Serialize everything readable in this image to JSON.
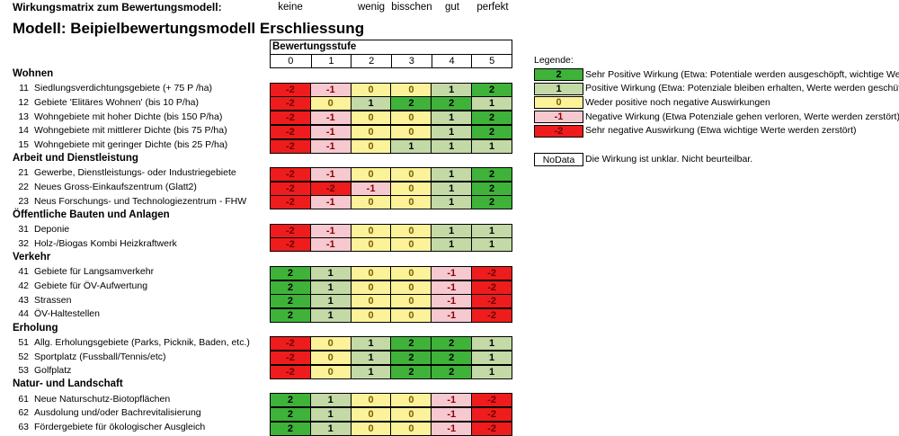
{
  "header_label": "Wirkungsmatrix zum Bewertungsmodell:",
  "level_labels": [
    "keine",
    "wenig",
    "bisschen",
    "gut",
    "perfekt"
  ],
  "title": "Modell: Beipielbewertungsmodell Erschliessung",
  "stufe": {
    "title": "Bewertungsstufe",
    "columns": [
      "0",
      "1",
      "2",
      "3",
      "4",
      "5"
    ]
  },
  "sections": [
    {
      "name": "Wohnen",
      "rows": [
        {
          "num": "11",
          "label": "Siedlungsverdichtungsgebiete (+ 75 P /ha)",
          "values": [
            "-2",
            "-1",
            "0",
            "0",
            "1",
            "2"
          ]
        },
        {
          "num": "12",
          "label": "Gebiete 'Elitäres Wohnen' (bis 10 P/ha)",
          "values": [
            "-2",
            "0",
            "1",
            "2",
            "2",
            "1"
          ]
        },
        {
          "num": "13",
          "label": "Wohngebiete mit hoher Dichte (bis 150 P/ha)",
          "values": [
            "-2",
            "-1",
            "0",
            "0",
            "1",
            "2"
          ]
        },
        {
          "num": "14",
          "label": "Wohngebiete mit mittlerer Dichte (bis 75 P/ha)",
          "values": [
            "-2",
            "-1",
            "0",
            "0",
            "1",
            "2"
          ]
        },
        {
          "num": "15",
          "label": "Wohngebiete mit geringer Dichte (bis 25 P/ha)",
          "values": [
            "-2",
            "-1",
            "0",
            "1",
            "1",
            "1"
          ]
        }
      ]
    },
    {
      "name": "Arbeit und Dienstleistung",
      "rows": [
        {
          "num": "21",
          "label": "Gewerbe, Dienstleistungs- oder Industriegebiete",
          "values": [
            "-2",
            "-1",
            "0",
            "0",
            "1",
            "2"
          ]
        },
        {
          "num": "22",
          "label": "Neues Gross-Einkaufszentrum (Glatt2)",
          "values": [
            "-2",
            "-2",
            "-1",
            "0",
            "1",
            "2"
          ]
        },
        {
          "num": "23",
          "label": "Neus Forschungs- und Technologiezentrum - FHW",
          "values": [
            "-2",
            "-1",
            "0",
            "0",
            "1",
            "2"
          ]
        }
      ]
    },
    {
      "name": "Öffentliche Bauten und Anlagen",
      "rows": [
        {
          "num": "31",
          "label": "Deponie",
          "values": [
            "-2",
            "-1",
            "0",
            "0",
            "1",
            "1"
          ]
        },
        {
          "num": "32",
          "label": "Holz-/Biogas Kombi Heizkraftwerk",
          "values": [
            "-2",
            "-1",
            "0",
            "0",
            "1",
            "1"
          ]
        }
      ]
    },
    {
      "name": "Verkehr",
      "rows": [
        {
          "num": "41",
          "label": "Gebiete für Langsamverkehr",
          "values": [
            "2",
            "1",
            "0",
            "0",
            "-1",
            "-2"
          ]
        },
        {
          "num": "42",
          "label": "Gebiete für ÖV-Aufwertung",
          "values": [
            "2",
            "1",
            "0",
            "0",
            "-1",
            "-2"
          ]
        },
        {
          "num": "43",
          "label": "Strassen",
          "values": [
            "2",
            "1",
            "0",
            "0",
            "-1",
            "-2"
          ]
        },
        {
          "num": "44",
          "label": "ÖV-Haltestellen",
          "values": [
            "2",
            "1",
            "0",
            "0",
            "-1",
            "-2"
          ]
        }
      ]
    },
    {
      "name": "Erholung",
      "rows": [
        {
          "num": "51",
          "label": "Allg. Erholungsgebiete (Parks, Picknik, Baden, etc.)",
          "values": [
            "-2",
            "0",
            "1",
            "2",
            "2",
            "1"
          ]
        },
        {
          "num": "52",
          "label": "Sportplatz (Fussball/Tennis/etc)",
          "values": [
            "-2",
            "0",
            "1",
            "2",
            "2",
            "1"
          ]
        },
        {
          "num": "53",
          "label": "Golfplatz",
          "values": [
            "-2",
            "0",
            "1",
            "2",
            "2",
            "1"
          ]
        }
      ]
    },
    {
      "name": "Natur- und Landschaft",
      "rows": [
        {
          "num": "61",
          "label": "Neue Naturschutz-Biotopflächen",
          "values": [
            "2",
            "1",
            "0",
            "0",
            "-1",
            "-2"
          ]
        },
        {
          "num": "62",
          "label": "Ausdolung und/oder Bachrevitalisierung",
          "values": [
            "2",
            "1",
            "0",
            "0",
            "-1",
            "-2"
          ]
        },
        {
          "num": "63",
          "label": "Fördergebiete für ökologischer Ausgleich",
          "values": [
            "2",
            "1",
            "0",
            "0",
            "-1",
            "-2"
          ]
        }
      ]
    }
  ],
  "legend": {
    "title": "Legende:",
    "items": [
      {
        "value": "2",
        "text": "Sehr Positive Wirkung (Etwa: Potentiale werden ausgeschöpft, wichtige Werte"
      },
      {
        "value": "1",
        "text": "Positive Wirkung (Etwa: Potenziale bleiben erhalten, Werte werden geschützt"
      },
      {
        "value": "0",
        "text": "Weder positive noch negative Auswirkungen"
      },
      {
        "value": "-1",
        "text": "Negative Wirkung (Etwa Potenziale gehen verloren, Werte werden zerstört)"
      },
      {
        "value": "-2",
        "text": "Sehr negative Auswirkung (Etwa wichtige Werte werden zerstört)"
      }
    ],
    "nodata_label": "NoData",
    "nodata_text": "Die Wirkung ist unklar. Nicht beurteilbar."
  },
  "colors": {
    "2": "#3fb23a",
    "1": "#c3d9a6",
    "0": "#fcf29a",
    "-1": "#f6c8d0",
    "-2": "#ee1c1c"
  }
}
